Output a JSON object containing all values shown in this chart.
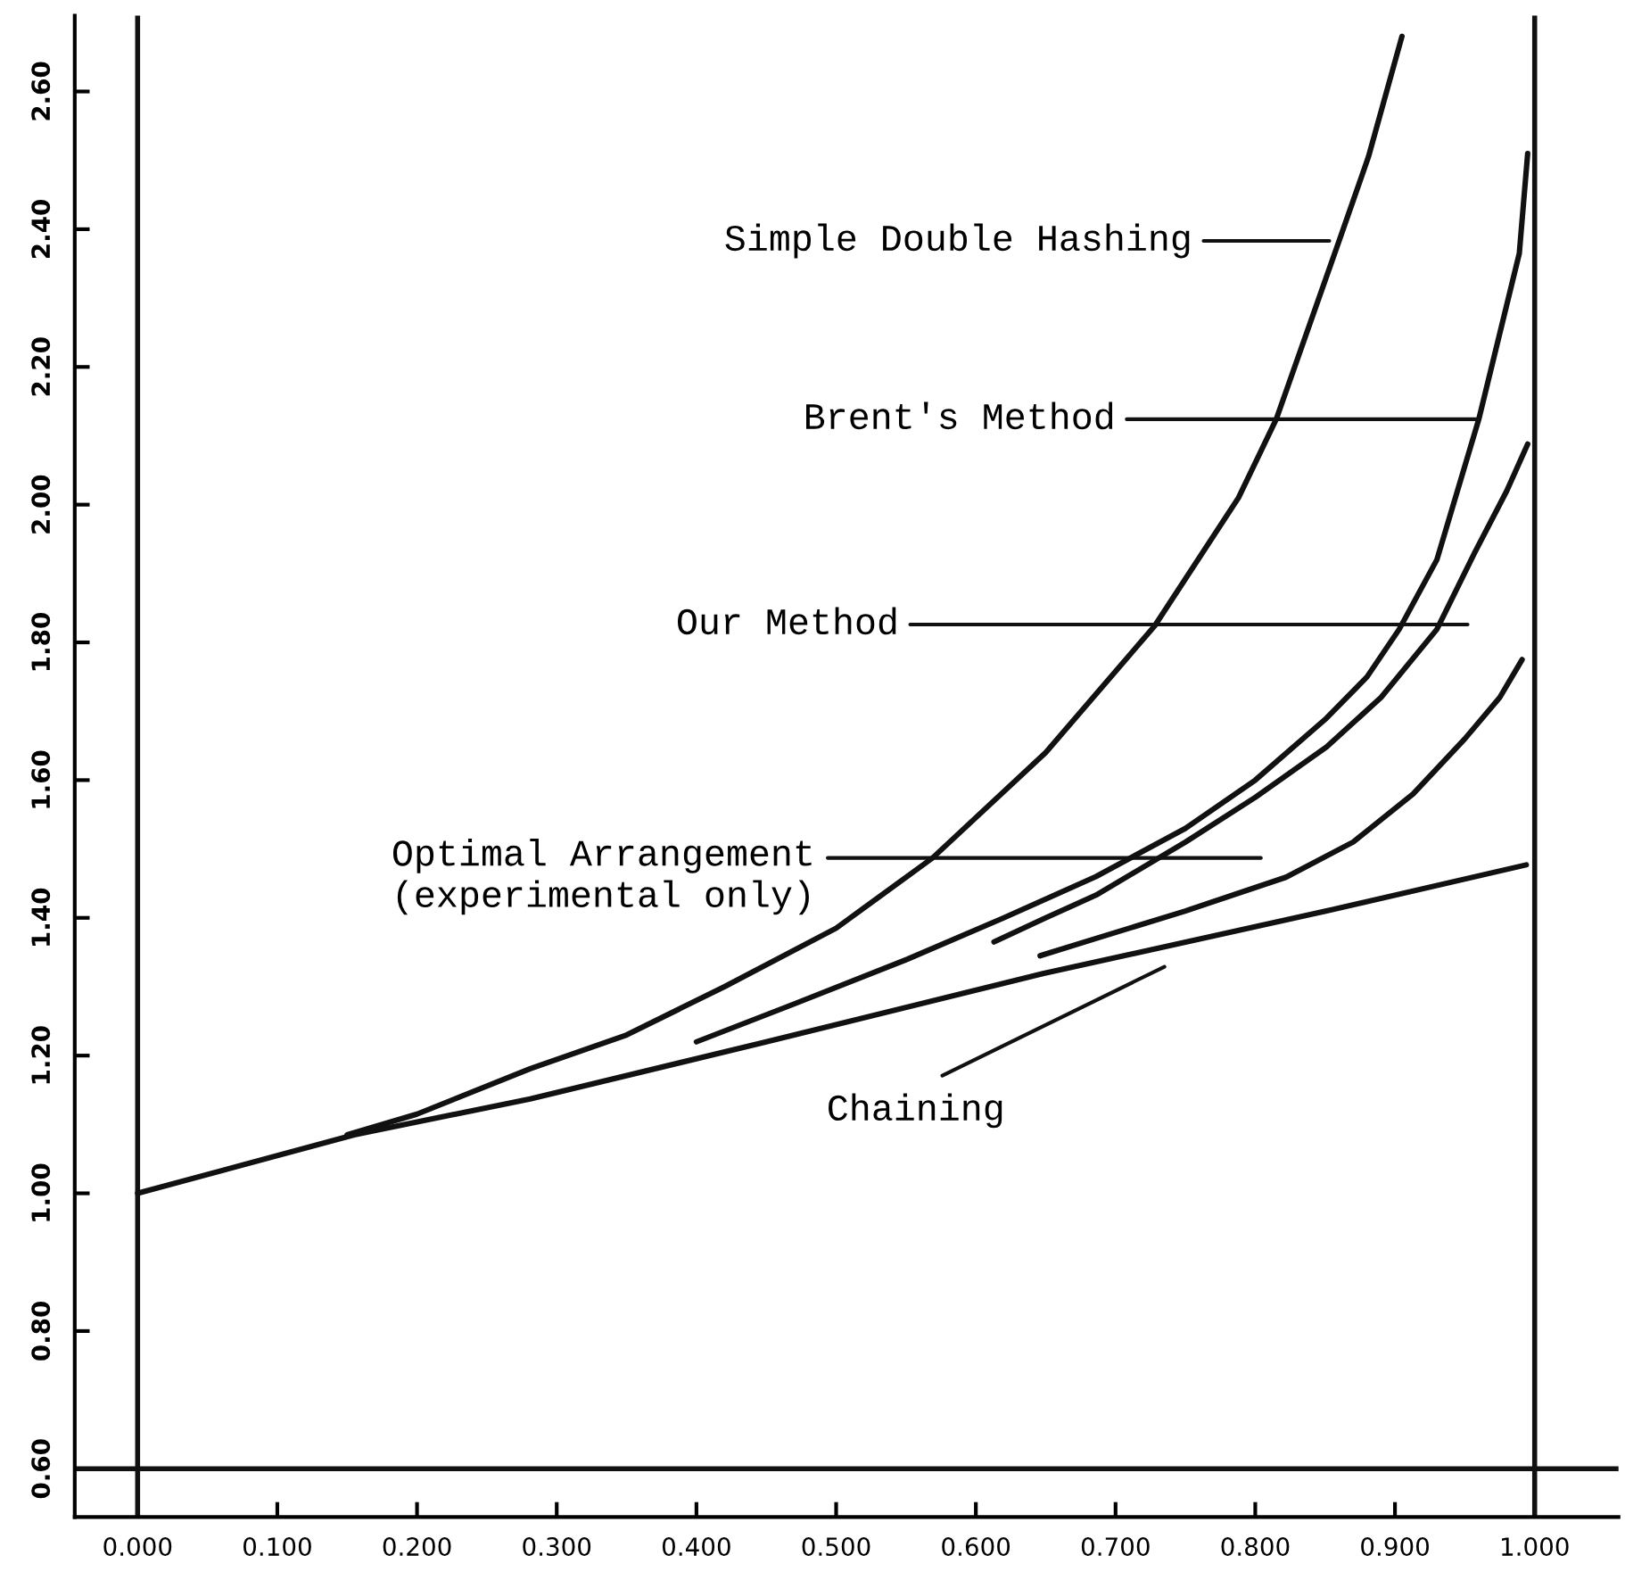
{
  "chart_data": {
    "type": "line",
    "series": [
      {
        "color": "#111111",
        "x": [
          0.15,
          0.2,
          0.281,
          0.35,
          0.42,
          0.5,
          0.569,
          0.65,
          0.728,
          0.788,
          0.815,
          0.86,
          0.881,
          0.905
        ],
        "values": [
          1.085,
          1.115,
          1.181,
          1.23,
          1.3,
          1.385,
          1.487,
          1.64,
          1.824,
          2.01,
          2.124,
          2.383,
          2.505,
          2.68
        ]
      },
      {
        "color": "#111111",
        "x": [
          0.4,
          0.47,
          0.551,
          0.62,
          0.686,
          0.75,
          0.8,
          0.851,
          0.88,
          0.903,
          0.93,
          0.96,
          0.98,
          0.989,
          0.995
        ],
        "values": [
          1.22,
          1.275,
          1.34,
          1.4,
          1.46,
          1.53,
          1.6,
          1.69,
          1.75,
          1.819,
          1.92,
          2.124,
          2.29,
          2.365,
          2.51
        ]
      },
      {
        "color": "#111111",
        "x": [
          0.613,
          0.65,
          0.686,
          0.75,
          0.8,
          0.851,
          0.89,
          0.93,
          0.957,
          0.98,
          0.995
        ],
        "values": [
          1.365,
          1.4,
          1.433,
          1.51,
          1.575,
          1.648,
          1.72,
          1.819,
          1.93,
          2.02,
          2.088
        ]
      },
      {
        "color": "#111111",
        "x": [
          0.646,
          0.686,
          0.75,
          0.822,
          0.87,
          0.913,
          0.95,
          0.975,
          0.991
        ],
        "values": [
          1.345,
          1.37,
          1.41,
          1.459,
          1.51,
          1.58,
          1.66,
          1.72,
          1.775
        ]
      },
      {
        "color": "#111111",
        "x": [
          0.0,
          0.155,
          0.281,
          0.45,
          0.648,
          0.851,
          0.994
        ],
        "values": [
          1.0,
          1.085,
          1.137,
          1.22,
          1.319,
          1.41,
          1.477
        ]
      }
    ],
    "annotations": [
      "Simple Double Hashing",
      {
        "text": "Brent's Method",
        "x": 0.96,
        "y": 2.124
      },
      "Our Method",
      "Optimal Arrangement\n(experimental only)",
      "Chaining"
    ],
    "ref_lines": [
      {
        "axis": "x",
        "value": 0.0
      },
      {
        "axis": "x",
        "value": 1.0
      },
      {
        "axis": "y",
        "value": 0.6
      }
    ],
    "xlim": [
      -0.045,
      1.06
    ],
    "ylim": [
      0.53,
      2.71
    ],
    "xticks": [
      {
        "value": 0,
        "label": "0.000"
      },
      {
        "value": 0.1,
        "label": "0.100"
      },
      {
        "value": 0.2,
        "label": "0.200"
      },
      {
        "value": 0.3,
        "label": "0.300"
      },
      {
        "value": 0.4,
        "label": "0.400"
      },
      {
        "value": 0.5,
        "label": "0.500"
      },
      {
        "value": 0.6,
        "label": "0.600"
      },
      {
        "value": 0.7,
        "label": "0.700"
      },
      {
        "value": 0.8,
        "label": "0.800"
      },
      {
        "value": 0.9,
        "label": "0.900"
      },
      {
        "value": 1,
        "label": "1.000"
      }
    ],
    "yticks": [
      {
        "value": 0.6,
        "label": "0.60"
      },
      {
        "value": 0.8,
        "label": "0.80"
      },
      {
        "value": 1,
        "label": "1.00"
      },
      {
        "value": 1.2,
        "label": "1.20"
      },
      {
        "value": 1.4,
        "label": "1.40"
      },
      {
        "value": 1.6,
        "label": "1.60"
      },
      {
        "value": 1.8,
        "label": "1.80"
      },
      {
        "value": 2,
        "label": "2.00"
      },
      {
        "value": 2.2,
        "label": "2.20"
      },
      {
        "value": 2.4,
        "label": "2.40"
      },
      {
        "value": 2.6,
        "label": "2.60"
      }
    ],
    "grid": false,
    "legend": false,
    "marker": "none",
    "line_style": "solid"
  }
}
